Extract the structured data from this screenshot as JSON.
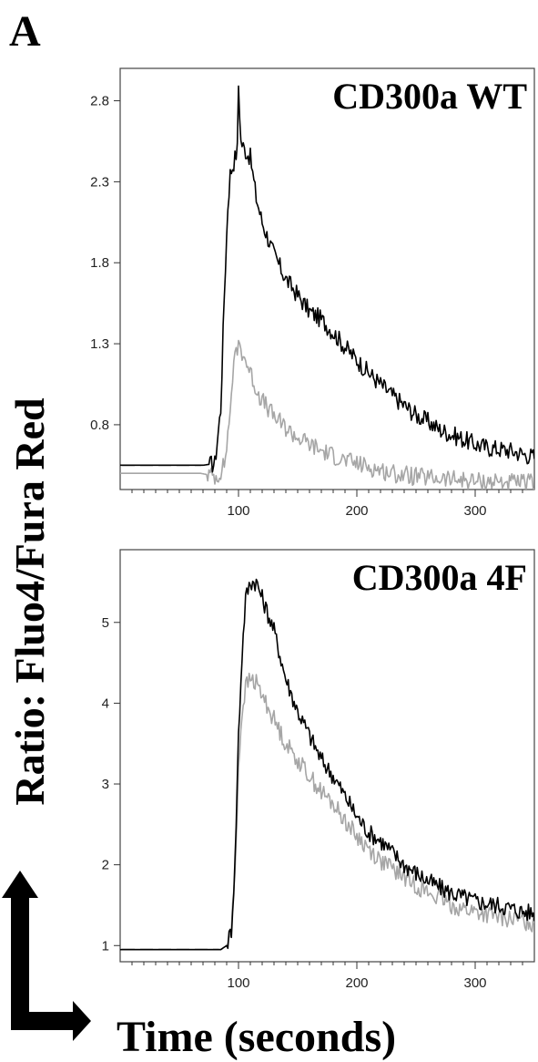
{
  "figure": {
    "panel_letter": "A",
    "ylabel": "Ratio: Fluo4/Fura Red",
    "xlabel": "Time (seconds)"
  },
  "colors": {
    "series_black": "#000000",
    "series_gray": "#a6a6a6",
    "frame": "#444444"
  },
  "chart_data": [
    {
      "type": "line",
      "title": "CD300a WT",
      "xlabel": "Time (seconds)",
      "ylabel": "Ratio: Fluo4/Fura Red",
      "xlim": [
        0,
        350
      ],
      "ylim": [
        0.4,
        3.0
      ],
      "xticks": [
        100,
        200,
        300
      ],
      "yticks": [
        0.8,
        1.3,
        1.8,
        2.3,
        2.8
      ],
      "grid": false,
      "series": [
        {
          "color": "#000000",
          "x": [
            0,
            70,
            80,
            85,
            88,
            91,
            93,
            96,
            99,
            100,
            102,
            105,
            110,
            115,
            120,
            130,
            140,
            150,
            160,
            170,
            180,
            190,
            200,
            210,
            220,
            230,
            240,
            250,
            260,
            270,
            280,
            290,
            300,
            310,
            320,
            330,
            340,
            350
          ],
          "y": [
            0.55,
            0.55,
            0.56,
            0.9,
            1.6,
            2.15,
            2.35,
            2.42,
            2.5,
            2.9,
            2.55,
            2.5,
            2.45,
            2.2,
            2.05,
            1.85,
            1.7,
            1.6,
            1.5,
            1.45,
            1.37,
            1.28,
            1.2,
            1.12,
            1.05,
            0.98,
            0.92,
            0.86,
            0.82,
            0.77,
            0.74,
            0.71,
            0.68,
            0.66,
            0.65,
            0.64,
            0.62,
            0.6
          ]
        },
        {
          "color": "#a6a6a6",
          "x": [
            0,
            68,
            75,
            82,
            88,
            92,
            95,
            98,
            100,
            103,
            106,
            110,
            115,
            120,
            130,
            140,
            150,
            160,
            170,
            180,
            190,
            200,
            210,
            220,
            230,
            240,
            250,
            260,
            270,
            280,
            290,
            300,
            310,
            320,
            330,
            340,
            350
          ],
          "y": [
            0.5,
            0.5,
            0.49,
            0.48,
            0.55,
            0.8,
            1.1,
            1.25,
            1.3,
            1.25,
            1.2,
            1.12,
            1.02,
            0.95,
            0.85,
            0.78,
            0.72,
            0.68,
            0.64,
            0.61,
            0.58,
            0.56,
            0.54,
            0.52,
            0.5,
            0.49,
            0.48,
            0.47,
            0.47,
            0.46,
            0.46,
            0.45,
            0.45,
            0.45,
            0.44,
            0.44,
            0.44
          ]
        }
      ]
    },
    {
      "type": "line",
      "title": "CD300a 4F",
      "xlabel": "Time (seconds)",
      "ylabel": "Ratio: Fluo4/Fura Red",
      "xlim": [
        0,
        350
      ],
      "ylim": [
        0.8,
        5.9
      ],
      "xticks": [
        100,
        200,
        300
      ],
      "yticks": [
        1,
        2,
        3,
        4,
        5
      ],
      "grid": false,
      "series": [
        {
          "color": "#000000",
          "x": [
            0,
            85,
            90,
            94,
            97,
            100,
            103,
            106,
            110,
            115,
            120,
            130,
            140,
            150,
            160,
            170,
            180,
            190,
            200,
            210,
            220,
            230,
            240,
            250,
            260,
            270,
            280,
            290,
            300,
            310,
            320,
            330,
            340,
            350
          ],
          "y": [
            0.95,
            0.95,
            1.0,
            1.2,
            2.0,
            3.6,
            4.6,
            5.3,
            5.5,
            5.5,
            5.3,
            4.9,
            4.3,
            3.9,
            3.6,
            3.3,
            3.1,
            2.85,
            2.6,
            2.4,
            2.3,
            2.15,
            2.0,
            1.9,
            1.8,
            1.72,
            1.65,
            1.6,
            1.55,
            1.52,
            1.5,
            1.46,
            1.42,
            1.4
          ]
        },
        {
          "color": "#a6a6a6",
          "x": [
            0,
            85,
            90,
            94,
            97,
            100,
            103,
            106,
            110,
            115,
            120,
            130,
            140,
            150,
            160,
            170,
            180,
            190,
            200,
            210,
            220,
            230,
            240,
            250,
            260,
            270,
            280,
            290,
            300,
            310,
            320,
            330,
            340,
            350
          ],
          "y": [
            0.95,
            0.95,
            1.0,
            1.2,
            1.9,
            3.2,
            3.9,
            4.2,
            4.3,
            4.25,
            4.1,
            3.8,
            3.5,
            3.3,
            3.1,
            2.9,
            2.75,
            2.55,
            2.35,
            2.2,
            2.05,
            1.95,
            1.85,
            1.75,
            1.65,
            1.58,
            1.5,
            1.45,
            1.42,
            1.38,
            1.35,
            1.33,
            1.3,
            1.28
          ]
        }
      ]
    }
  ]
}
